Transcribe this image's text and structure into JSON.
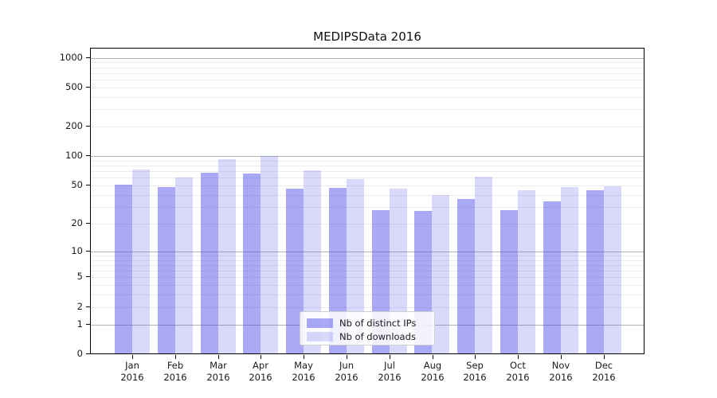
{
  "chart_data": {
    "type": "bar",
    "title": "MEDIPSData 2016",
    "categories": [
      "Jan",
      "Feb",
      "Mar",
      "Apr",
      "May",
      "Jun",
      "Jul",
      "Aug",
      "Sep",
      "Oct",
      "Nov",
      "Dec"
    ],
    "year_label": "2016",
    "series": [
      {
        "name": "Nb of distinct IPs",
        "color": "rgba(64,64,235,0.45)",
        "color_hex": "#a9a9f6",
        "values": [
          51,
          48,
          68,
          66,
          46,
          47,
          28,
          27,
          36,
          28,
          34,
          45
        ]
      },
      {
        "name": "Nb of downloads",
        "color": "rgba(64,64,235,0.20)",
        "color_hex": "#d9d9f6",
        "values": [
          73,
          61,
          93,
          101,
          72,
          58,
          46,
          40,
          62,
          45,
          48,
          49
        ]
      }
    ],
    "xlabel": "",
    "ylabel": "",
    "yscale": "log1p",
    "ylim": [
      0,
      1276
    ],
    "yticks": [
      0,
      1,
      2,
      5,
      10,
      20,
      50,
      100,
      200,
      500,
      1000
    ],
    "grid": {
      "on": true,
      "major_at": [
        1,
        10,
        100,
        1000
      ],
      "minor_at": [
        2,
        3,
        4,
        5,
        6,
        7,
        8,
        9,
        20,
        30,
        40,
        50,
        60,
        70,
        80,
        90,
        200,
        300,
        400,
        500,
        600,
        700,
        800,
        900
      ],
      "major_color": "#b3b3b3",
      "minor_color": "#ececec"
    },
    "legend": {
      "position": "lower-center"
    }
  }
}
